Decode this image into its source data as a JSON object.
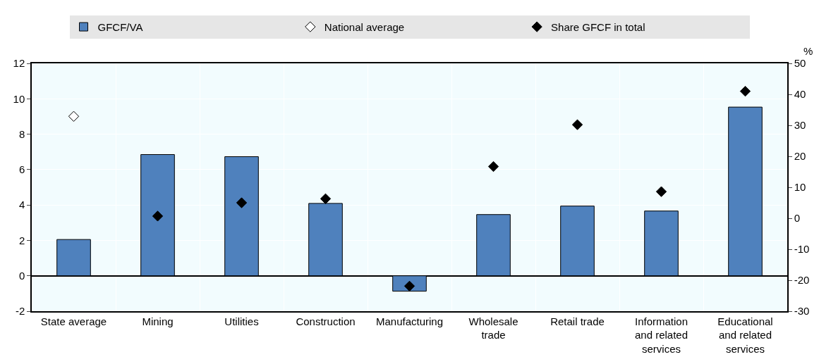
{
  "chart_data": {
    "type": "bar",
    "y2label": "%",
    "categories": [
      "State average",
      "Mining",
      "Utilities",
      "Construction",
      "Manufacturing",
      "Wholesale trade",
      "Retail trade",
      "Information and related services",
      "Educational and related services"
    ],
    "series": [
      {
        "name": "GFCF/VA",
        "color": "#4f81bd",
        "values": [
          2.05,
          6.85,
          6.73,
          4.09,
          -0.87,
          3.46,
          3.94,
          3.66,
          9.53
        ]
      },
      {
        "name": "National average",
        "type": "scatter",
        "color": "#ffffff",
        "marker": "diamond",
        "axis": "y2",
        "values": [
          32.9,
          null,
          null,
          null,
          null,
          null,
          null,
          null,
          null
        ]
      },
      {
        "name": "Share GFCF in total",
        "type": "scatter",
        "color": "#000000",
        "marker": "diamond",
        "axis": "y2",
        "values": [
          null,
          0.7,
          5.0,
          6.3,
          -21.9,
          16.7,
          30.2,
          8.6,
          41.0
        ]
      }
    ],
    "ylim": [
      -2,
      12
    ],
    "yticks": [
      -2,
      0,
      2,
      4,
      6,
      8,
      10,
      12
    ],
    "y2lim": [
      -30,
      50
    ],
    "y2ticks": [
      -30,
      -20,
      -10,
      0,
      10,
      20,
      30,
      40,
      50
    ],
    "grid": true,
    "legend": "top"
  }
}
